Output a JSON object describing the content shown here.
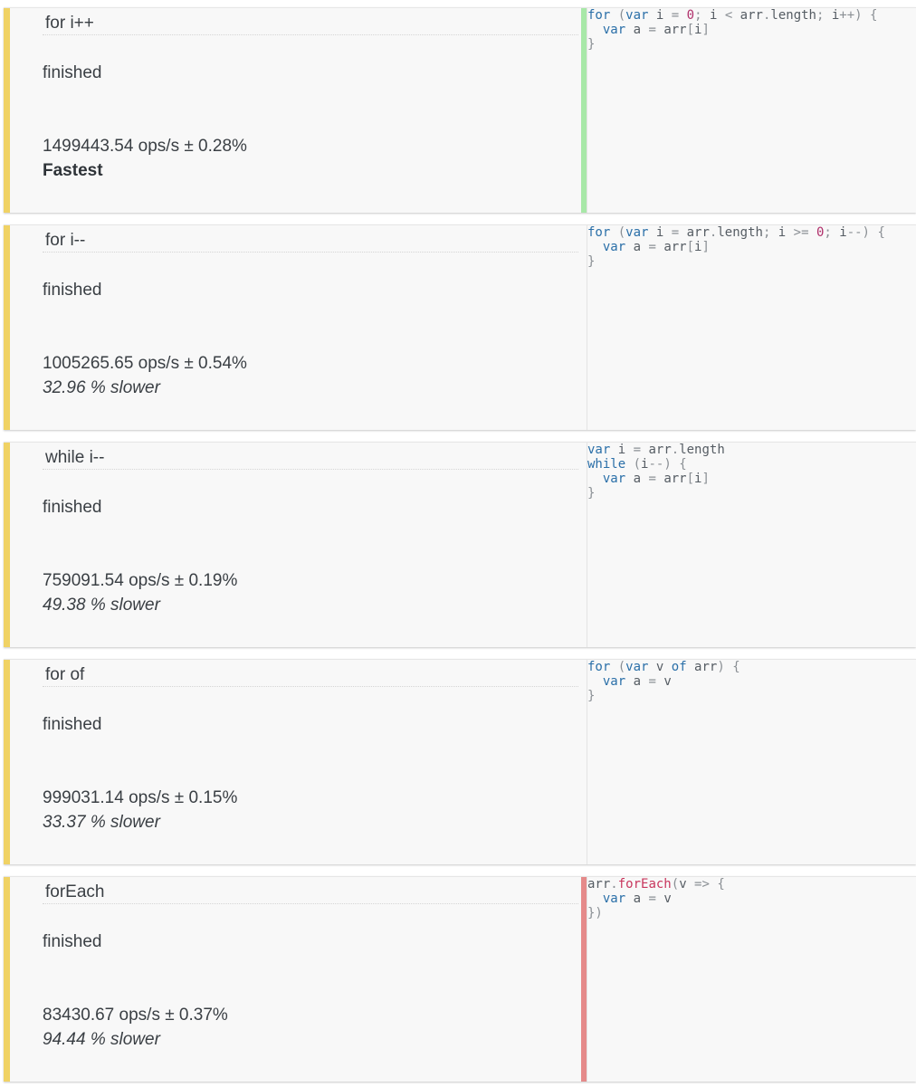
{
  "colors": {
    "accent_yellow": "#f0d264",
    "fastest_bar": "#a8e8a8",
    "slowest_bar": "#e58a8a",
    "neutral_bar": "#e4e4e4"
  },
  "cases": [
    {
      "title": "for i++",
      "status": "finished",
      "ops": "1499443.54 ops/s ± 0.28%",
      "verdict": "Fastest",
      "rank": "fastest",
      "code": [
        "for (var i = 0; i < arr.length; i++) {",
        "  var a = arr[i]",
        "}"
      ]
    },
    {
      "title": "for i--",
      "status": "finished",
      "ops": "1005265.65 ops/s ± 0.54%",
      "verdict": "32.96 % slower",
      "rank": "normal",
      "code": [
        "for (var i = arr.length; i >= 0; i--) {",
        "  var a = arr[i]",
        "}"
      ]
    },
    {
      "title": "while i--",
      "status": "finished",
      "ops": "759091.54 ops/s ± 0.19%",
      "verdict": "49.38 % slower",
      "rank": "normal",
      "code": [
        "var i = arr.length",
        "while (i--) {",
        "  var a = arr[i]",
        "}"
      ]
    },
    {
      "title": "for of",
      "status": "finished",
      "ops": "999031.14 ops/s ± 0.15%",
      "verdict": "33.37 % slower",
      "rank": "normal",
      "code": [
        "for (var v of arr) {",
        "  var a = v",
        "}"
      ]
    },
    {
      "title": "forEach",
      "status": "finished",
      "ops": "83430.67 ops/s ± 0.37%",
      "verdict": "94.44 % slower",
      "rank": "slowest",
      "code": [
        "arr.forEach(v => {",
        "  var a = v",
        "})"
      ]
    }
  ]
}
